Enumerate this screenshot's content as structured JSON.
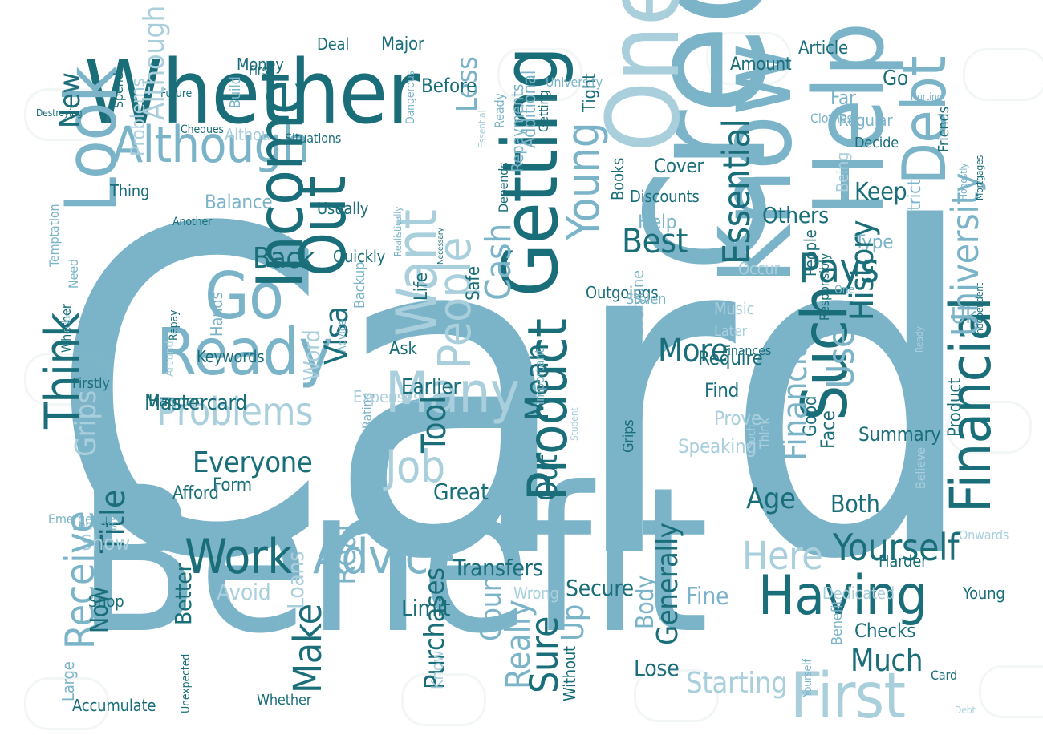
{
  "words": [
    "Card",
    "Benefit",
    "Credit",
    "Whether",
    "One",
    "Know",
    "Help",
    "Getting",
    "Look",
    "Out",
    "Although",
    "Go",
    "Ready",
    "Think",
    "Problems",
    "Work",
    "Advice",
    "Product",
    "Financial",
    "Such",
    "Having",
    "First",
    "Yourself",
    "People",
    "Want",
    "Cash",
    "Young",
    "Essential",
    "University",
    "Debt",
    "Pays",
    "Best",
    "Others",
    "Keep",
    "Strict",
    "Being",
    "Uk",
    "Here",
    "Make",
    "Really",
    "Purchases",
    "Count",
    "Limit",
    "Many",
    "Earlier",
    "Job",
    "Everyone",
    "Mastercard",
    "Form",
    "Visa",
    "Keywords",
    "Word",
    "Back",
    "More",
    "Use",
    "Sure",
    "Up",
    "Age",
    "Lose",
    "Starting",
    "Much",
    "Checks",
    "Both",
    "Face",
    "Summary",
    "Good",
    "Prove",
    "Find",
    "Speaking",
    "Fine",
    "Generally",
    "Body",
    "Secure",
    "Transfers",
    "Great",
    "Real",
    "Title",
    "Show",
    "Receive",
    "Better",
    "Loans",
    "Avoid",
    "Now",
    "Shop",
    "Large",
    "Accumulate",
    "Unexpected",
    "Whether",
    "Without",
    "Grips",
    "Firstly",
    "Lenders",
    "Emergencies",
    "Afford",
    "Happen",
    "Expenses",
    "Around",
    "Advice",
    "Hands",
    "Backup",
    "Life",
    "Safe",
    "Quickly",
    "Ask",
    "Require",
    "Music",
    "Later",
    "Finances",
    "Outgoings",
    "Stolen",
    "Occur",
    "Type",
    "Help",
    "Usually",
    "Discounts",
    "Cover",
    "Books",
    "Tight",
    "Additional",
    "Repayments",
    "Depends",
    "Less",
    "Before",
    "Major",
    "Deal",
    "Money",
    "New",
    "Amount",
    "Article",
    "Go",
    "Far",
    "Regular",
    "Decide",
    "Friends",
    "Honestly",
    "Mortgages",
    "Clothes",
    "Hurting",
    "Realistically",
    "Necessary",
    "Another",
    "Need",
    "Temptation",
    "Repay",
    "Putting",
    "Thing",
    "Balance",
    "Althou",
    "Build",
    "Situations",
    "Cheques",
    "Future",
    "Spend",
    "Problems",
    "Although",
    "Destroying",
    "First",
    "Dangerous",
    "Essential",
    "Ready",
    "Getting",
    "University",
    "Independent",
    "Believe",
    "Responsibly",
    "People",
    "One",
    "History",
    "Credit",
    "Benefit",
    "Financial",
    "Tool",
    "Out",
    "Mean",
    "Rating",
    "Important",
    "Think",
    "Such",
    "Grips",
    "Student",
    "Income",
    "Dedicated",
    "Wrong",
    "Harder",
    "Onwards",
    "Product",
    "Young",
    "Know",
    "Yourself",
    "Everyone",
    "Card",
    "Debt",
    "Whether",
    "Ready"
  ]
}
